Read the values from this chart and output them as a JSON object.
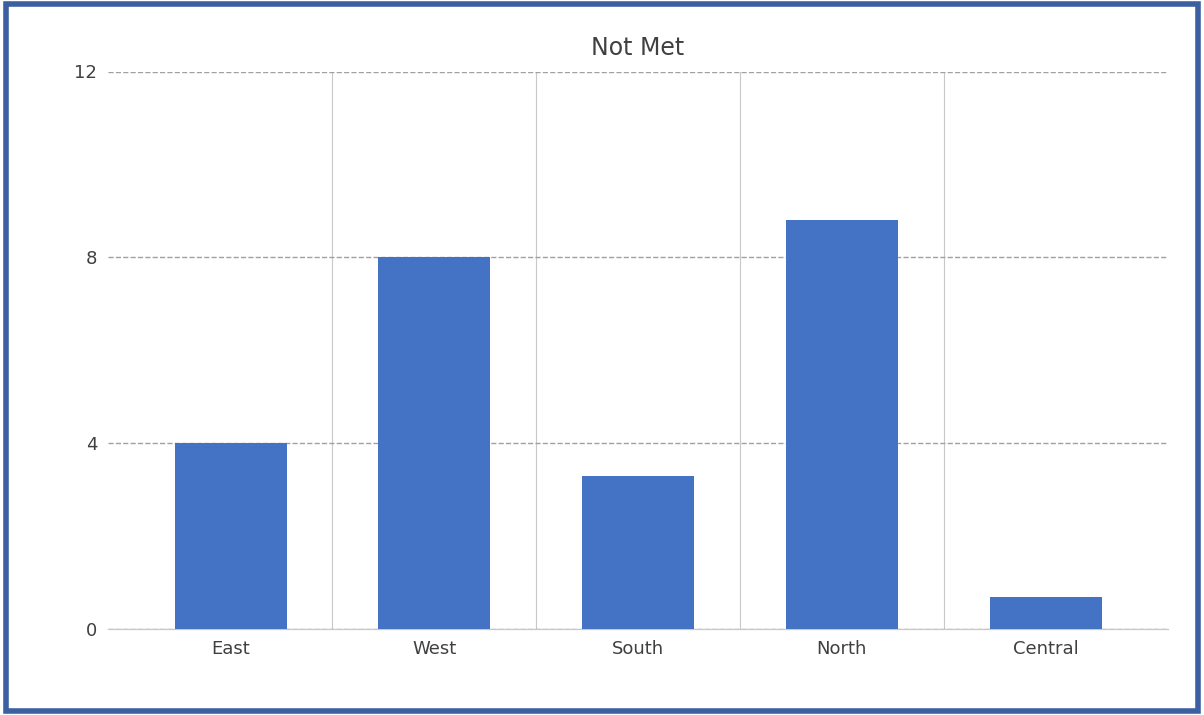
{
  "title": "Not Met",
  "categories": [
    "East",
    "West",
    "South",
    "North",
    "Central"
  ],
  "values": [
    4.0,
    8.0,
    3.3,
    8.8,
    0.7
  ],
  "bar_color": "#4472C4",
  "ylim": [
    0,
    12
  ],
  "yticks": [
    0,
    4,
    8,
    12
  ],
  "title_fontsize": 17,
  "tick_fontsize": 13,
  "background_color": "#ffffff",
  "plot_bg_color": "#ffffff",
  "outer_border_color": "#3B5FA0",
  "outer_border_linewidth": 4,
  "spine_color": "#c8c8c8",
  "grid_color": "#a0a0a0",
  "grid_linestyle": "--",
  "grid_linewidth": 1.0,
  "bar_width": 0.55
}
